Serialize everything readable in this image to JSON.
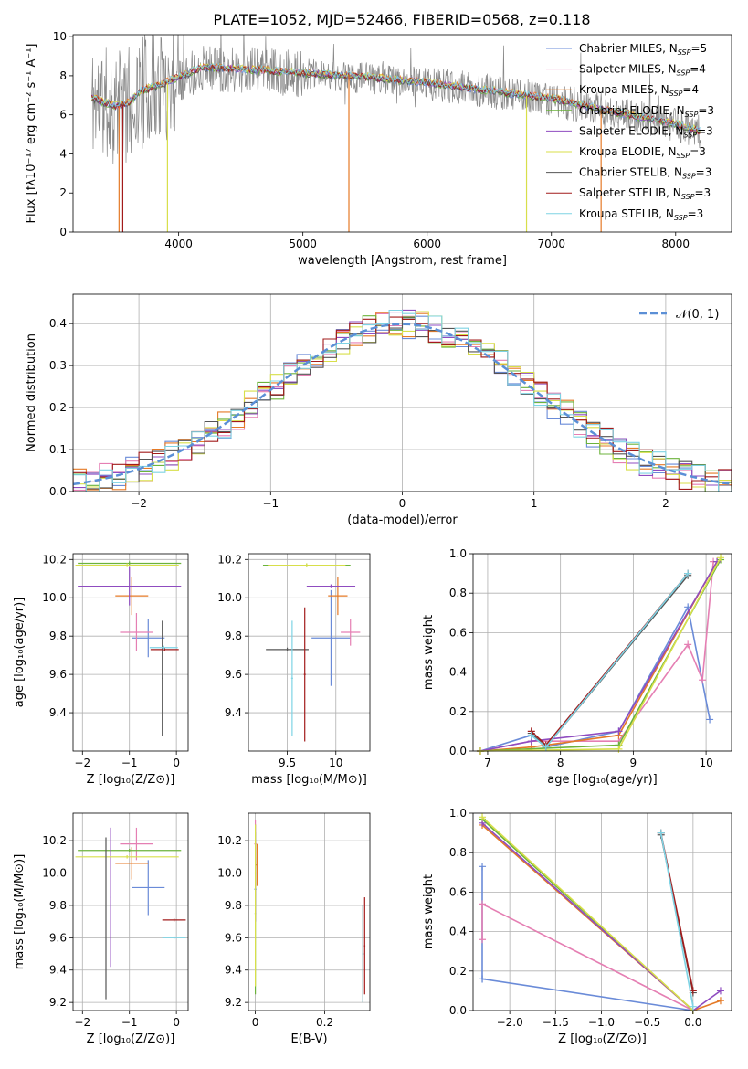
{
  "figure": {
    "title": "PLATE=1052, MJD=52466, FIBERID=0568, z=0.118"
  },
  "palette": {
    "Chabrier MILES": "#6a8bd8",
    "Salpeter MILES": "#e57fb3",
    "Kroupa MILES": "#e57a27",
    "Chabrier ELODIE": "#6cb33c",
    "Salpeter ELODIE": "#8f4cc0",
    "Kroupa ELODIE": "#d8df4a",
    "Chabrier STELIB": "#555555",
    "Salpeter STELIB": "#a21b1b",
    "Kroupa STELIB": "#7ed3e4",
    "data": "#888888",
    "normal": "#5b8fd6"
  },
  "chart_data": [
    {
      "id": "spectrum",
      "type": "line",
      "xlabel": "wavelength [Angstrom, rest frame]",
      "ylabel": "Flux [fλ10⁻¹⁷ erg cm⁻² s⁻¹ A⁻¹]",
      "xlim": [
        3150,
        8450
      ],
      "ylim": [
        0,
        10.1
      ],
      "xticks": [
        4000,
        5000,
        6000,
        7000,
        8000
      ],
      "yticks": [
        0,
        2,
        4,
        6,
        8,
        10
      ],
      "grid": false,
      "legend_position": "right",
      "legend": [
        "Chabrier MILES, N_SSP=5",
        "Salpeter MILES, N_SSP=4",
        "Kroupa MILES, N_SSP=4",
        "Chabrier ELODIE, N_SSP=3",
        "Salpeter ELODIE, N_SSP=3",
        "Kroupa ELODIE, N_SSP=3",
        "Chabrier STELIB, N_SSP=3",
        "Salpeter STELIB, N_SSP=3",
        "Kroupa STELIB, N_SSP=3"
      ],
      "data_wavelength_range": [
        3300,
        8200
      ],
      "model_shape": [
        [
          3300,
          6.8
        ],
        [
          3500,
          6.4
        ],
        [
          3600,
          6.6
        ],
        [
          3700,
          7.2
        ],
        [
          3900,
          7.6
        ],
        [
          4000,
          7.9
        ],
        [
          4200,
          8.4
        ],
        [
          4500,
          8.3
        ],
        [
          5000,
          8.1
        ],
        [
          5500,
          7.9
        ],
        [
          6000,
          7.6
        ],
        [
          6500,
          7.2
        ],
        [
          7000,
          6.8
        ],
        [
          7500,
          6.1
        ],
        [
          8000,
          5.5
        ],
        [
          8200,
          5.1
        ]
      ]
    },
    {
      "id": "residual_hist",
      "type": "histogram",
      "xlabel": "(data-model)/error",
      "ylabel": "Normed distribution",
      "xlim": [
        -2.5,
        2.5
      ],
      "ylim": [
        0,
        0.47
      ],
      "xticks": [
        -2,
        -1,
        0,
        1,
        2
      ],
      "yticks": [
        0.0,
        0.1,
        0.2,
        0.3,
        0.4
      ],
      "grid": true,
      "legend_position": "top-right",
      "legend": [
        "𝒩(0, 1)"
      ]
    },
    {
      "id": "age_vs_Z",
      "type": "errorbar",
      "xlabel": "Z [log₁₀(Z/Z⊙)]",
      "ylabel": "age  [log₁₀(age/yr)]",
      "xlim": [
        -2.2,
        0.25
      ],
      "ylim": [
        9.2,
        10.23
      ],
      "xticks": [
        -2,
        -1,
        0
      ],
      "yticks": [
        9.4,
        9.6,
        9.8,
        10.0,
        10.2
      ],
      "grid": true,
      "series": [
        {
          "name": "Chabrier MILES",
          "x": -0.6,
          "xerr": 0.35,
          "y": 9.79,
          "yerr": 0.1
        },
        {
          "name": "Salpeter MILES",
          "x": -0.85,
          "xerr": 0.35,
          "y": 9.82,
          "yerr": 0.1
        },
        {
          "name": "Kroupa MILES",
          "x": -0.95,
          "xerr": 0.35,
          "y": 10.01,
          "yerr": 0.1
        },
        {
          "name": "Chabrier ELODIE",
          "x": -1.0,
          "xerr": 1.1,
          "y": 10.18,
          "yerr": 0.01
        },
        {
          "name": "Salpeter ELODIE",
          "x": -1.0,
          "xerr": 1.1,
          "y": 10.06,
          "yerr": 0.1
        },
        {
          "name": "Kroupa ELODIE",
          "x": -1.05,
          "xerr": 1.1,
          "y": 10.17,
          "yerr": 0.01
        },
        {
          "name": "Chabrier STELIB",
          "x": -0.3,
          "xerr": 0.01,
          "y": 9.58,
          "yerr": 0.3
        },
        {
          "name": "Salpeter STELIB",
          "x": -0.25,
          "xerr": 0.3,
          "y": 9.73,
          "yerr": 0.01
        },
        {
          "name": "Kroupa STELIB",
          "x": -0.27,
          "xerr": 0.3,
          "y": 9.74,
          "yerr": 0.01
        }
      ]
    },
    {
      "id": "age_vs_mass",
      "type": "errorbar",
      "xlabel": "mass [log₁₀(M/M⊙)]",
      "xlim": [
        9.1,
        10.35
      ],
      "ylim": [
        9.2,
        10.23
      ],
      "xticks": [
        9.5,
        10.0
      ],
      "yticks": [
        9.4,
        9.6,
        9.8,
        10.0,
        10.2
      ],
      "grid": true,
      "series": [
        {
          "name": "Chabrier MILES",
          "x": 9.95,
          "xerr": 0.2,
          "y": 9.79,
          "yerr": 0.25
        },
        {
          "name": "Salpeter MILES",
          "x": 10.15,
          "xerr": 0.1,
          "y": 9.82,
          "yerr": 0.07
        },
        {
          "name": "Kroupa MILES",
          "x": 10.02,
          "xerr": 0.1,
          "y": 10.01,
          "yerr": 0.1
        },
        {
          "name": "Chabrier ELODIE",
          "x": 9.7,
          "xerr": 0.45,
          "y": 10.17,
          "yerr": 0.01
        },
        {
          "name": "Salpeter ELODIE",
          "x": 9.95,
          "xerr": 0.25,
          "y": 10.06,
          "yerr": 0.01
        },
        {
          "name": "Kroupa ELODIE",
          "x": 9.7,
          "xerr": 0.4,
          "y": 10.17,
          "yerr": 0.01
        },
        {
          "name": "Chabrier STELIB",
          "x": 9.5,
          "xerr": 0.22,
          "y": 9.73,
          "yerr": 0.01
        },
        {
          "name": "Salpeter STELIB",
          "x": 9.68,
          "xerr": 0.01,
          "y": 9.6,
          "yerr": 0.35
        },
        {
          "name": "Kroupa STELIB",
          "x": 9.55,
          "xerr": 0.01,
          "y": 9.58,
          "yerr": 0.3
        }
      ]
    },
    {
      "id": "weight_vs_age",
      "type": "line",
      "xlabel": "age  [log₁₀(age/yr)]",
      "ylabel": "mass weight",
      "xlim": [
        6.8,
        10.35
      ],
      "ylim": [
        0,
        1.0
      ],
      "xticks": [
        7,
        8,
        9,
        10
      ],
      "yticks": [
        0.0,
        0.2,
        0.4,
        0.6,
        0.8,
        1.0
      ],
      "grid": true,
      "series": [
        {
          "name": "Chabrier MILES",
          "x": [
            6.9,
            7.6,
            7.8,
            8.8,
            9.75,
            10.05
          ],
          "y": [
            0.0,
            0.08,
            0.02,
            0.1,
            0.73,
            0.16
          ]
        },
        {
          "name": "Salpeter MILES",
          "x": [
            6.9,
            7.6,
            8.8,
            9.75,
            9.95,
            10.1
          ],
          "y": [
            0.0,
            0.05,
            0.05,
            0.54,
            0.36,
            0.96
          ]
        },
        {
          "name": "Kroupa MILES",
          "x": [
            6.9,
            7.6,
            8.8,
            10.15
          ],
          "y": [
            0.0,
            0.02,
            0.08,
            0.96
          ]
        },
        {
          "name": "Chabrier ELODIE",
          "x": [
            6.9,
            8.8,
            10.2
          ],
          "y": [
            0.0,
            0.03,
            0.97
          ]
        },
        {
          "name": "Salpeter ELODIE",
          "x": [
            6.9,
            7.6,
            8.8,
            10.15
          ],
          "y": [
            0.0,
            0.05,
            0.1,
            0.96
          ]
        },
        {
          "name": "Kroupa ELODIE",
          "x": [
            6.9,
            8.8,
            10.2
          ],
          "y": [
            0.0,
            0.01,
            0.98
          ]
        },
        {
          "name": "Chabrier STELIB",
          "x": [
            7.6,
            7.8,
            9.75
          ],
          "y": [
            0.09,
            0.02,
            0.89
          ]
        },
        {
          "name": "Salpeter STELIB",
          "x": [
            7.6,
            7.8,
            9.75
          ],
          "y": [
            0.1,
            0.03,
            0.9
          ]
        },
        {
          "name": "Kroupa STELIB",
          "x": [
            7.6,
            7.8,
            9.75
          ],
          "y": [
            0.08,
            0.02,
            0.9
          ]
        }
      ]
    },
    {
      "id": "mass_vs_Z",
      "type": "errorbar",
      "xlabel": "Z [log₁₀(Z/Z⊙)]",
      "ylabel": "mass [log₁₀(M/M⊙)]",
      "xlim": [
        -2.2,
        0.25
      ],
      "ylim": [
        9.15,
        10.37
      ],
      "xticks": [
        -2,
        -1,
        0
      ],
      "yticks": [
        9.2,
        9.4,
        9.6,
        9.8,
        10.0,
        10.2
      ],
      "grid": true,
      "series": [
        {
          "name": "Chabrier MILES",
          "x": -0.6,
          "xerr": 0.35,
          "y": 9.91,
          "yerr": 0.17
        },
        {
          "name": "Salpeter MILES",
          "x": -0.85,
          "xerr": 0.35,
          "y": 10.18,
          "yerr": 0.1
        },
        {
          "name": "Kroupa MILES",
          "x": -0.95,
          "xerr": 0.35,
          "y": 10.06,
          "yerr": 0.1
        },
        {
          "name": "Chabrier ELODIE",
          "x": -1.0,
          "xerr": 1.1,
          "y": 10.14,
          "yerr": 0.01
        },
        {
          "name": "Salpeter ELODIE",
          "x": -1.4,
          "xerr": 0.01,
          "y": 9.85,
          "yerr": 0.43
        },
        {
          "name": "Kroupa ELODIE",
          "x": -1.05,
          "xerr": 1.1,
          "y": 10.1,
          "yerr": 0.01
        },
        {
          "name": "Chabrier STELIB",
          "x": -1.5,
          "xerr": 0.01,
          "y": 9.72,
          "yerr": 0.5
        },
        {
          "name": "Salpeter STELIB",
          "x": -0.05,
          "xerr": 0.25,
          "y": 9.71,
          "yerr": 0.01
        },
        {
          "name": "Kroupa STELIB",
          "x": -0.05,
          "xerr": 0.25,
          "y": 9.6,
          "yerr": 0.01
        }
      ]
    },
    {
      "id": "mass_vs_ebv",
      "type": "errorbar",
      "xlabel": "E(B-V)",
      "xlim": [
        -0.02,
        0.33
      ],
      "ylim": [
        9.15,
        10.37
      ],
      "xticks": [
        0.0,
        0.2
      ],
      "yticks": [
        9.2,
        9.4,
        9.6,
        9.8,
        10.0,
        10.2
      ],
      "grid": true,
      "series": [
        {
          "name": "Chabrier MILES",
          "x": 0.0,
          "xerr": 0.003,
          "y": 9.9,
          "yerr": 0.2
        },
        {
          "name": "Salpeter MILES",
          "x": 0.0,
          "xerr": 0.003,
          "y": 10.18,
          "yerr": 0.15
        },
        {
          "name": "Kroupa MILES",
          "x": 0.005,
          "xerr": 0.003,
          "y": 10.05,
          "yerr": 0.13
        },
        {
          "name": "Chabrier ELODIE",
          "x": 0.0,
          "xerr": 0.002,
          "y": 9.75,
          "yerr": 0.5
        },
        {
          "name": "Salpeter ELODIE",
          "x": 0.0,
          "xerr": 0.002,
          "y": 10.0,
          "yerr": 0.3
        },
        {
          "name": "Kroupa ELODIE",
          "x": 0.0,
          "xerr": 0.002,
          "y": 9.8,
          "yerr": 0.5
        },
        {
          "name": "Chabrier STELIB",
          "x": 0.31,
          "xerr": 0.002,
          "y": 9.5,
          "yerr": 0.3
        },
        {
          "name": "Salpeter STELIB",
          "x": 0.315,
          "xerr": 0.002,
          "y": 9.55,
          "yerr": 0.3
        },
        {
          "name": "Kroupa STELIB",
          "x": 0.31,
          "xerr": 0.002,
          "y": 9.5,
          "yerr": 0.3
        }
      ]
    },
    {
      "id": "weight_vs_Z",
      "type": "line",
      "xlabel": "Z [log₁₀(Z/Z⊙)]",
      "ylabel": "mass weight",
      "xlim": [
        -2.4,
        0.42
      ],
      "ylim": [
        0,
        1.0
      ],
      "xticks": [
        -2.0,
        -1.5,
        -1.0,
        -0.5,
        0.0
      ],
      "yticks": [
        0.0,
        0.2,
        0.4,
        0.6,
        0.8,
        1.0
      ],
      "grid": true,
      "series": [
        {
          "name": "Chabrier MILES",
          "x": [
            -2.3,
            -2.3,
            -2.3,
            0.0
          ],
          "y": [
            0.73,
            0.16,
            0.16,
            0.0
          ]
        },
        {
          "name": "Salpeter MILES",
          "x": [
            -2.3,
            -2.3,
            0.0
          ],
          "y": [
            0.36,
            0.54,
            0.0
          ]
        },
        {
          "name": "Kroupa MILES",
          "x": [
            -2.3,
            0.0,
            0.3
          ],
          "y": [
            0.94,
            0.0,
            0.05
          ]
        },
        {
          "name": "Chabrier ELODIE",
          "x": [
            -2.3,
            0.0
          ],
          "y": [
            0.97,
            0.0
          ]
        },
        {
          "name": "Salpeter ELODIE",
          "x": [
            -2.3,
            0.0,
            0.3
          ],
          "y": [
            0.95,
            0.0,
            0.1
          ]
        },
        {
          "name": "Kroupa ELODIE",
          "x": [
            -2.3,
            0.0
          ],
          "y": [
            0.98,
            0.0
          ]
        },
        {
          "name": "Chabrier STELIB",
          "x": [
            -0.35,
            0.0
          ],
          "y": [
            0.89,
            0.09
          ]
        },
        {
          "name": "Salpeter STELIB",
          "x": [
            -0.35,
            0.0
          ],
          "y": [
            0.9,
            0.1
          ]
        },
        {
          "name": "Kroupa STELIB",
          "x": [
            -0.35,
            0.0
          ],
          "y": [
            0.9,
            0.02
          ]
        }
      ]
    }
  ]
}
